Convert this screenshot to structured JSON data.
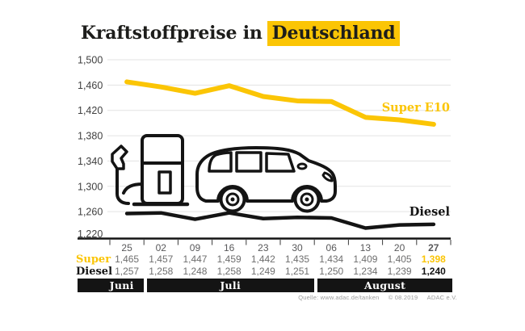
{
  "title": {
    "prefix": "Kraftstoffpreise in",
    "highlight": "Deutschland"
  },
  "colors": {
    "accent_yellow": "#FBC505",
    "ink": "#141414",
    "grid_line": "#e3e3e3",
    "muted_value": "#6e6e6e"
  },
  "chart_data": {
    "type": "line",
    "title": "Kraftstoffpreise in Deutschland",
    "x_dates": [
      "25",
      "02",
      "09",
      "16",
      "23",
      "30",
      "06",
      "13",
      "20",
      "27"
    ],
    "months": [
      {
        "label": "Juni",
        "cols": 1
      },
      {
        "label": "Juli",
        "cols": 5
      },
      {
        "label": "August",
        "cols": 4
      }
    ],
    "ylim": [
      1220,
      1500
    ],
    "yticks": [
      1500,
      1460,
      1420,
      1380,
      1340,
      1300,
      1260,
      1220
    ],
    "grid": true,
    "legend_position": "inline-right",
    "series": [
      {
        "name": "Super E10",
        "row_label": "Super",
        "color": "#FBC505",
        "values": [
          1465,
          1457,
          1447,
          1459,
          1442,
          1435,
          1434,
          1409,
          1405,
          1398
        ]
      },
      {
        "name": "Diesel",
        "row_label": "Diesel",
        "color": "#141414",
        "values": [
          1257,
          1258,
          1248,
          1258,
          1249,
          1251,
          1250,
          1234,
          1239,
          1240
        ]
      }
    ]
  },
  "source": {
    "quelle": "Quelle: www.adac.de/tanken",
    "copyright": "© 08.2019",
    "org": "ADAC e.V."
  }
}
